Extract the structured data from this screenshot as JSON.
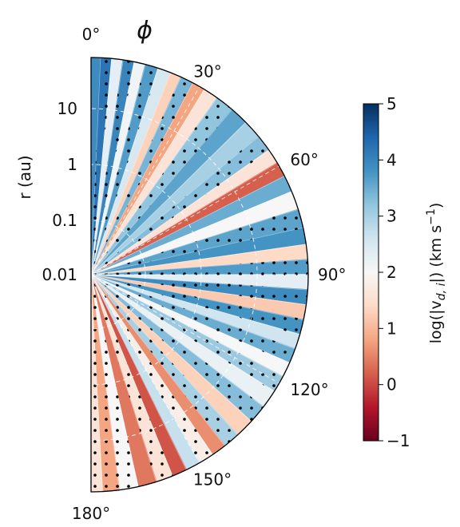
{
  "chart_data": {
    "type": "heatmap",
    "projection": "polar-half-disk",
    "title": "ϕ",
    "r_axis": {
      "label": "r (au)",
      "scale": "log",
      "tick_labels": [
        "10",
        "1",
        "0.1",
        "0.01"
      ],
      "tick_values": [
        10,
        1,
        0.1,
        0.01
      ]
    },
    "phi_axis": {
      "unit": "degrees",
      "range": [
        0,
        180
      ],
      "tick_labels": [
        "0°",
        "30°",
        "60°",
        "90°",
        "120°",
        "150°",
        "180°"
      ],
      "tick_values": [
        0,
        30,
        60,
        90,
        120,
        150,
        180
      ]
    },
    "colorbar": {
      "label": "log(|v_d, i|) (km s⁻¹)",
      "range": [
        -1,
        5
      ],
      "tick_labels": [
        "5",
        "4",
        "3",
        "2",
        "1",
        "0",
        "−1"
      ],
      "tick_values": [
        5,
        4,
        3,
        2,
        1,
        0,
        -1
      ],
      "colormap": "RdBu",
      "stops": [
        "#67001f",
        "#b2182b",
        "#d6604d",
        "#f4a582",
        "#fddbc7",
        "#f7f7f7",
        "#d1e5f0",
        "#92c5de",
        "#4393c3",
        "#2166ac",
        "#053061"
      ]
    },
    "stippling": "dots mark a subset of regions",
    "grid": true,
    "rays": [
      {
        "phi": 1,
        "value": 3.9,
        "width": 2.2,
        "dots": false
      },
      {
        "phi": 4,
        "value": 4.2,
        "width": 2.5,
        "dots": true
      },
      {
        "phi": 7,
        "value": 2.3,
        "width": 1.2,
        "dots": false
      },
      {
        "phi": 10,
        "value": 4.0,
        "width": 2.5,
        "dots": true
      },
      {
        "phi": 13,
        "value": 2.1,
        "width": 1.0,
        "dots": false
      },
      {
        "phi": 16,
        "value": 3.7,
        "width": 2.5,
        "dots": true
      },
      {
        "phi": 20,
        "value": 2.5,
        "width": 2.0,
        "dots": false
      },
      {
        "phi": 23,
        "value": 1.3,
        "width": 1.0,
        "dots": false
      },
      {
        "phi": 26,
        "value": 3.4,
        "width": 3.0,
        "dots": true
      },
      {
        "phi": 30,
        "value": 0.8,
        "width": 1.2,
        "dots": false
      },
      {
        "phi": 33,
        "value": 1.6,
        "width": 3.5,
        "dots": false
      },
      {
        "phi": 38,
        "value": 3.2,
        "width": 4.0,
        "dots": true
      },
      {
        "phi": 43,
        "value": 3.6,
        "width": 3.5,
        "dots": false
      },
      {
        "phi": 48,
        "value": 3.0,
        "width": 3.0,
        "dots": false
      },
      {
        "phi": 53,
        "value": 3.3,
        "width": 4.0,
        "dots": true
      },
      {
        "phi": 57,
        "value": 1.6,
        "width": 2.5,
        "dots": false
      },
      {
        "phi": 61,
        "value": 0.2,
        "width": 1.0,
        "dots": false
      },
      {
        "phi": 65,
        "value": 3.5,
        "width": 4.0,
        "dots": false
      },
      {
        "phi": 70,
        "value": 2.0,
        "width": 2.0,
        "dots": false
      },
      {
        "phi": 75,
        "value": 3.6,
        "width": 4.5,
        "dots": true
      },
      {
        "phi": 80,
        "value": 3.8,
        "width": 3.5,
        "dots": false
      },
      {
        "phi": 84,
        "value": 1.4,
        "width": 1.2,
        "dots": false
      },
      {
        "phi": 88,
        "value": 3.7,
        "width": 3.0,
        "dots": true
      },
      {
        "phi": 92,
        "value": 2.3,
        "width": 1.5,
        "dots": false
      },
      {
        "phi": 96,
        "value": 3.9,
        "width": 3.5,
        "dots": true
      },
      {
        "phi": 100,
        "value": 1.2,
        "width": 1.2,
        "dots": false
      },
      {
        "phi": 104,
        "value": 3.8,
        "width": 3.5,
        "dots": true
      },
      {
        "phi": 108,
        "value": 2.6,
        "width": 2.0,
        "dots": false
      },
      {
        "phi": 112,
        "value": 3.5,
        "width": 3.5,
        "dots": true
      },
      {
        "phi": 116,
        "value": 2.0,
        "width": 2.0,
        "dots": false
      },
      {
        "phi": 120,
        "value": 3.1,
        "width": 3.0,
        "dots": true
      },
      {
        "phi": 125,
        "value": 2.2,
        "width": 3.5,
        "dots": false
      },
      {
        "phi": 130,
        "value": 3.3,
        "width": 3.5,
        "dots": true
      },
      {
        "phi": 135,
        "value": 1.3,
        "width": 3.0,
        "dots": false
      },
      {
        "phi": 140,
        "value": 3.0,
        "width": 3.0,
        "dots": true
      },
      {
        "phi": 144,
        "value": 0.6,
        "width": 2.5,
        "dots": false
      },
      {
        "phi": 148,
        "value": 1.8,
        "width": 3.0,
        "dots": true
      },
      {
        "phi": 152,
        "value": 2.7,
        "width": 2.5,
        "dots": false
      },
      {
        "phi": 156,
        "value": 0.1,
        "width": 2.5,
        "dots": false
      },
      {
        "phi": 160,
        "value": 1.6,
        "width": 3.0,
        "dots": true
      },
      {
        "phi": 165,
        "value": 0.4,
        "width": 3.0,
        "dots": false
      },
      {
        "phi": 170,
        "value": 2.0,
        "width": 3.0,
        "dots": true
      },
      {
        "phi": 175,
        "value": 0.8,
        "width": 3.0,
        "dots": true
      },
      {
        "phi": 179,
        "value": 1.6,
        "width": 2.0,
        "dots": true
      }
    ]
  }
}
